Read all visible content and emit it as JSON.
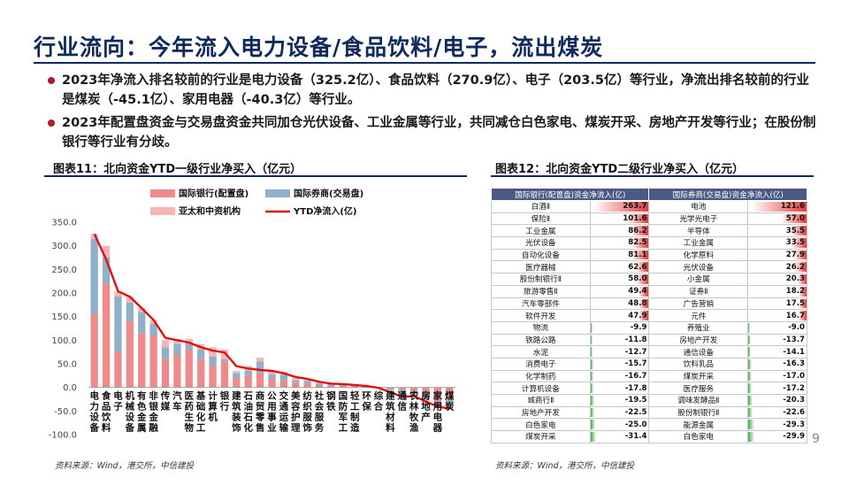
{
  "title": "行业流向：今年流入电力设备/食品饮料/电子，流出煤炭",
  "bullets": [
    "2023年净流入排名较前的行业是电力设备（325.2亿）、食品饮料（270.9亿）、电子（203.5亿）等行业，净流出排名较前的行业是煤炭（-45.1亿）、家用电器（-40.3亿）等行业。",
    "2023年配置盘资金与交易盘资金共同加仓光伏设备、工业金属等行业，共同减仓白色家电、煤炭开采、房地产开发等行业；在股份制银行等行业有分歧。"
  ],
  "figure11": {
    "title": "图表11：北向资金YTD一级行业净买入（亿元）",
    "source": "资料来源：Wind，港交所，中信建投"
  },
  "figure12": {
    "title": "图表12：北向资金YTD二级行业净买入（亿元）",
    "source": "资料来源：Wind，港交所，中信建投",
    "headers": [
      "国际银行(配置盘)资金净流入(亿)",
      "国际券商(交易盘)资金净流入(亿)"
    ],
    "rows": [
      [
        "白酒Ⅱ",
        "263.7",
        "电池",
        "121.6"
      ],
      [
        "保险Ⅱ",
        "101.6",
        "光学光电子",
        "57.0"
      ],
      [
        "工业金属",
        "86.2",
        "半导体",
        "35.5"
      ],
      [
        "光伏设备",
        "82.5",
        "工业金属",
        "33.5"
      ],
      [
        "自动化设备",
        "81.1",
        "化学原料",
        "27.9"
      ],
      [
        "医疗器械",
        "62.6",
        "光伏设备",
        "26.2"
      ],
      [
        "股份制银行Ⅱ",
        "58.0",
        "小金属",
        "20.3"
      ],
      [
        "旅游零售Ⅱ",
        "49.4",
        "证券Ⅱ",
        "18.2"
      ],
      [
        "汽车零部件",
        "48.8",
        "广告营销",
        "17.5"
      ],
      [
        "软件开发",
        "47.9",
        "元件",
        "16.7"
      ],
      [
        "物流",
        "-9.9",
        "养殖业",
        "-9.0"
      ],
      [
        "铁路公路",
        "-11.8",
        "房地产开发",
        "-13.7"
      ],
      [
        "水泥",
        "-12.7",
        "通信设备",
        "-14.1"
      ],
      [
        "消费电子",
        "-15.7",
        "饮料乳品",
        "-16.3"
      ],
      [
        "化学制药",
        "-16.7",
        "煤炭开采",
        "-17.0"
      ],
      [
        "计算机设备",
        "-17.8",
        "医疗服务",
        "-17.2"
      ],
      [
        "城商行Ⅱ",
        "-19.5",
        "调味发酵品Ⅱ",
        "-20.3"
      ],
      [
        "房地产开发",
        "-22.5",
        "股份制银行Ⅱ",
        "-22.6"
      ],
      [
        "白色家电",
        "-25.0",
        "能源金属",
        "-29.3"
      ],
      [
        "煤炭开采",
        "-31.4",
        "白色家电",
        "-29.9"
      ]
    ]
  },
  "page_number": "9",
  "colors": {
    "bank": "#ef8a8c",
    "broker": "#8fb0ca",
    "other": "#f6b4b4",
    "ytd": "#e01010",
    "accent": "#b4182d",
    "header": "#4a5a82"
  },
  "chart_data": {
    "type": "bar",
    "stacked": true,
    "title": "",
    "xlabel": "",
    "ylabel": "",
    "ylim": [
      -100,
      350
    ],
    "yticks": [
      "350.0",
      "300.0",
      "250.0",
      "200.0",
      "150.0",
      "100.0",
      "50.0",
      "0.0",
      "-50.0",
      "-100.0"
    ],
    "legend_position": "top",
    "categories": [
      "电力设备",
      "食品饮料",
      "电子",
      "机械设备",
      "有色金属",
      "非银金融",
      "传媒",
      "汽车",
      "医药生物",
      "基础化工",
      "计算机",
      "银行",
      "建筑装饰",
      "石油石化",
      "商贸零售",
      "公用事业",
      "交通运输",
      "美容护理",
      "纺织服饰",
      "社会服务",
      "钢铁",
      "国防军工",
      "轻工制造",
      "环保",
      "综合",
      "建筑材料",
      "通信",
      "农林牧渔",
      "房地产",
      "家用电器",
      "煤炭"
    ],
    "series": [
      {
        "name": "国际银行(配置盘)",
        "values": [
          155,
          220,
          75,
          140,
          115,
          110,
          60,
          70,
          80,
          60,
          45,
          55,
          20,
          25,
          30,
          18,
          15,
          10,
          8,
          5,
          4,
          3,
          2,
          2,
          1,
          0,
          -5,
          -8,
          -15,
          -30,
          -25
        ]
      },
      {
        "name": "国际券商(交易盘)",
        "values": [
          160,
          55,
          118,
          40,
          45,
          25,
          25,
          22,
          15,
          20,
          20,
          5,
          10,
          10,
          25,
          10,
          12,
          5,
          6,
          3,
          3,
          3,
          2,
          1,
          0,
          -5,
          -10,
          -6,
          -10,
          -8,
          -12
        ]
      },
      {
        "name": "亚太和中资机构",
        "values": [
          10,
          25,
          10,
          12,
          8,
          8,
          15,
          10,
          8,
          12,
          20,
          20,
          5,
          10,
          8,
          7,
          6,
          5,
          4,
          3,
          2,
          2,
          1,
          1,
          -2,
          -5,
          -5,
          -4,
          -5,
          -3,
          -8
        ]
      },
      {
        "name": "YTD净流入(亿)",
        "type": "line",
        "values": [
          325.2,
          270.9,
          203.5,
          192,
          168,
          143,
          105,
          100,
          95,
          85,
          78,
          74,
          45,
          40,
          37,
          35,
          30,
          22,
          18,
          12,
          8,
          7,
          5,
          3,
          -1,
          -10,
          -20,
          -18,
          -30,
          -40.3,
          -45.1
        ]
      }
    ]
  }
}
